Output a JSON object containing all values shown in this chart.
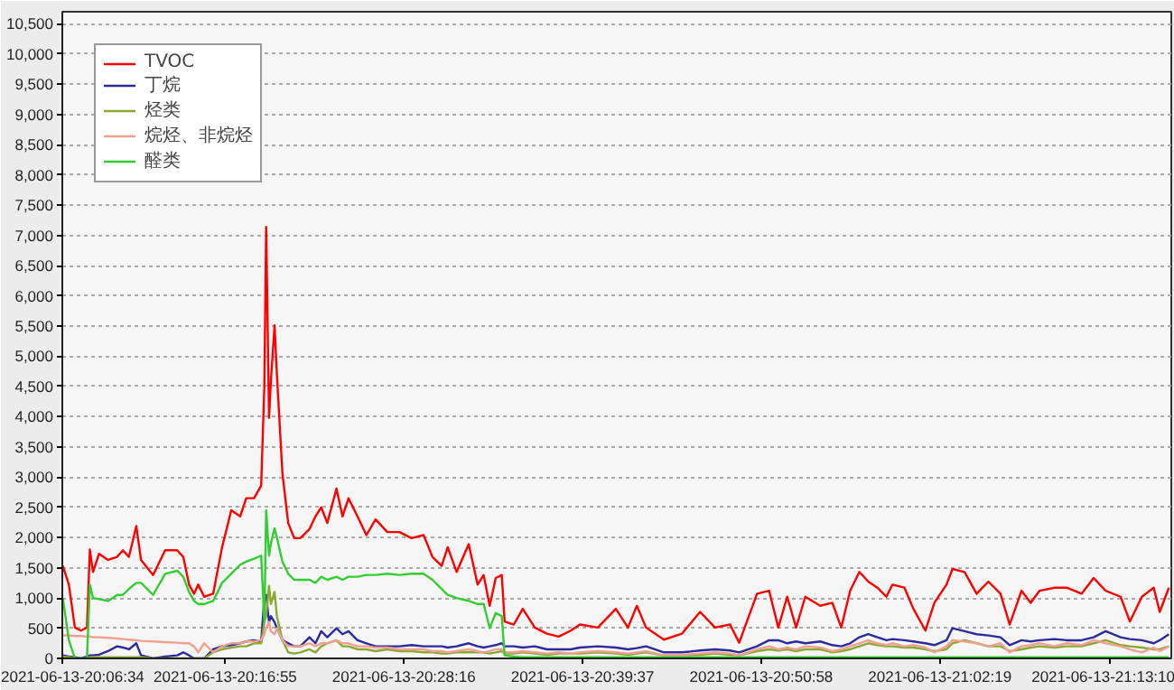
{
  "chart_data": {
    "type": "line",
    "x": [
      "2021-06-13T20:06:36",
      "2021-06-13T20:06:59",
      "2021-06-13T20:07:22",
      "2021-06-13T20:07:45",
      "2021-06-13T20:08:08",
      "2021-06-13T20:08:19",
      "2021-06-13T20:08:31",
      "2021-06-13T20:08:54",
      "2021-06-13T20:09:28",
      "2021-06-13T20:10:03",
      "2021-06-13T20:10:25",
      "2021-06-13T20:10:48",
      "2021-06-13T20:11:16",
      "2021-06-13T20:11:34",
      "2021-06-13T20:12:20",
      "2021-06-13T20:13:06",
      "2021-06-13T20:13:52",
      "2021-06-13T20:14:15",
      "2021-06-13T20:14:37",
      "2021-06-13T20:14:56",
      "2021-06-13T20:15:12",
      "2021-06-13T20:15:35",
      "2021-06-13T20:16:09",
      "2021-06-13T20:16:43",
      "2021-06-13T20:17:18",
      "2021-06-13T20:17:52",
      "2021-06-13T20:18:15",
      "2021-06-13T20:18:45",
      "2021-06-13T20:19:12",
      "2021-06-13T20:19:24",
      "2021-06-13T20:19:31",
      "2021-06-13T20:19:42",
      "2021-06-13T20:19:49",
      "2021-06-13T20:20:03",
      "2021-06-13T20:20:12",
      "2021-06-13T20:20:33",
      "2021-06-13T20:20:55",
      "2021-06-13T20:21:18",
      "2021-06-13T20:21:41",
      "2021-06-13T20:22:16",
      "2021-06-13T20:22:39",
      "2021-06-13T20:23:01",
      "2021-06-13T20:23:24",
      "2021-06-13T20:23:59",
      "2021-06-13T20:24:22",
      "2021-06-13T20:24:45",
      "2021-06-13T20:25:19",
      "2021-06-13T20:25:53",
      "2021-06-13T20:26:28",
      "2021-06-13T20:27:13",
      "2021-06-13T20:27:59",
      "2021-06-13T20:28:45",
      "2021-06-13T20:29:31",
      "2021-06-13T20:30:05",
      "2021-06-13T20:30:40",
      "2021-06-13T20:31:03",
      "2021-06-13T20:31:37",
      "2021-06-13T20:32:23",
      "2021-06-13T20:32:57",
      "2021-06-13T20:33:20",
      "2021-06-13T20:33:43",
      "2021-06-13T20:34:06",
      "2021-06-13T20:34:29",
      "2021-06-13T20:34:40",
      "2021-06-13T20:35:15",
      "2021-06-13T20:35:49",
      "2021-06-13T20:36:35",
      "2021-06-13T20:37:21",
      "2021-06-13T20:38:06",
      "2021-06-13T20:38:52",
      "2021-06-13T20:39:27",
      "2021-06-13T20:40:35",
      "2021-06-13T20:41:44",
      "2021-06-13T20:42:30",
      "2021-06-13T20:43:04",
      "2021-06-13T20:43:39",
      "2021-06-13T20:44:47",
      "2021-06-13T20:45:56",
      "2021-06-13T20:47:05",
      "2021-06-13T20:48:02",
      "2021-06-13T20:48:59",
      "2021-06-13T20:49:34",
      "2021-06-13T20:50:42",
      "2021-06-13T20:51:28",
      "2021-06-13T20:52:03",
      "2021-06-13T20:52:37",
      "2021-06-13T20:53:11",
      "2021-06-13T20:53:46",
      "2021-06-13T20:54:43",
      "2021-06-13T20:55:29",
      "2021-06-13T20:56:03",
      "2021-06-13T20:56:37",
      "2021-06-13T20:57:12",
      "2021-06-13T20:57:46",
      "2021-06-13T20:58:21",
      "2021-06-13T20:58:55",
      "2021-06-13T20:59:18",
      "2021-06-13T21:00:04",
      "2021-06-13T21:00:38",
      "2021-06-13T21:01:24",
      "2021-06-13T21:01:58",
      "2021-06-13T21:02:44",
      "2021-06-13T21:03:07",
      "2021-06-13T21:03:53",
      "2021-06-13T21:04:39",
      "2021-06-13T21:05:24",
      "2021-06-13T21:06:10",
      "2021-06-13T21:06:45",
      "2021-06-13T21:07:30",
      "2021-06-13T21:08:05",
      "2021-06-13T21:08:39",
      "2021-06-13T21:09:36",
      "2021-06-13T21:10:22",
      "2021-06-13T21:11:19",
      "2021-06-13T21:12:05",
      "2021-06-13T21:12:51",
      "2021-06-13T21:13:48",
      "2021-06-13T21:14:23",
      "2021-06-13T21:15:09",
      "2021-06-13T21:15:54",
      "2021-06-13T21:16:17",
      "2021-06-13T21:16:52"
    ],
    "series": [
      {
        "name": "TVOC",
        "color": "#ff0000",
        "values": [
          1530,
          1220,
          510,
          460,
          510,
          1800,
          1430,
          1730,
          1630,
          1680,
          1790,
          1680,
          2190,
          1630,
          1380,
          1790,
          1790,
          1680,
          1220,
          1070,
          1220,
          1020,
          1070,
          1840,
          2450,
          2350,
          2650,
          2650,
          2860,
          4490,
          7140,
          3980,
          4590,
          5510,
          4690,
          3060,
          2240,
          1990,
          1990,
          2140,
          2350,
          2500,
          2240,
          2810,
          2350,
          2650,
          2350,
          2040,
          2300,
          2090,
          2090,
          1990,
          2040,
          1680,
          1530,
          1840,
          1430,
          1890,
          1220,
          1380,
          870,
          1330,
          1380,
          610,
          560,
          820,
          510,
          410,
          360,
          460,
          560,
          510,
          820,
          510,
          870,
          510,
          310,
          410,
          770,
          510,
          560,
          260,
          1070,
          1120,
          510,
          1020,
          510,
          1020,
          870,
          920,
          510,
          1120,
          1430,
          1270,
          1170,
          1020,
          1220,
          1170,
          820,
          460,
          920,
          1220,
          1480,
          1430,
          1070,
          1270,
          1070,
          560,
          1120,
          920,
          1120,
          1170,
          1170,
          1070,
          1330,
          1120,
          1020,
          610,
          1020,
          1170,
          770,
          1170
        ]
      },
      {
        "name": "丁烷",
        "color": "#2b2b9b",
        "values": [
          50,
          30,
          20,
          0,
          30,
          50,
          50,
          60,
          120,
          200,
          180,
          150,
          250,
          50,
          0,
          30,
          50,
          100,
          50,
          0,
          0,
          0,
          150,
          200,
          220,
          250,
          280,
          300,
          280,
          1000,
          1050,
          600,
          700,
          600,
          500,
          300,
          250,
          200,
          200,
          350,
          250,
          450,
          350,
          500,
          400,
          450,
          300,
          250,
          200,
          200,
          200,
          220,
          200,
          200,
          200,
          180,
          200,
          250,
          200,
          180,
          200,
          220,
          250,
          200,
          200,
          180,
          200,
          150,
          150,
          150,
          180,
          200,
          180,
          150,
          170,
          200,
          100,
          100,
          130,
          150,
          130,
          100,
          200,
          300,
          300,
          250,
          280,
          250,
          280,
          220,
          200,
          250,
          350,
          400,
          350,
          300,
          320,
          300,
          280,
          250,
          220,
          300,
          500,
          450,
          400,
          380,
          350,
          220,
          300,
          280,
          300,
          320,
          300,
          300,
          350,
          450,
          350,
          320,
          300,
          250,
          300,
          400
        ]
      },
      {
        "name": "烃类",
        "color": "#8aa832",
        "values": [
          30,
          20,
          0,
          0,
          0,
          20,
          20,
          20,
          20,
          20,
          20,
          20,
          20,
          20,
          0,
          0,
          0,
          0,
          0,
          0,
          0,
          0,
          100,
          150,
          180,
          200,
          200,
          250,
          250,
          600,
          700,
          1200,
          900,
          1100,
          700,
          300,
          100,
          80,
          100,
          150,
          100,
          200,
          250,
          300,
          200,
          200,
          150,
          150,
          120,
          150,
          120,
          120,
          100,
          100,
          80,
          80,
          100,
          100,
          100,
          100,
          80,
          100,
          120,
          80,
          80,
          100,
          80,
          60,
          80,
          80,
          80,
          100,
          80,
          60,
          80,
          100,
          50,
          50,
          60,
          80,
          60,
          50,
          120,
          150,
          130,
          150,
          120,
          150,
          150,
          100,
          120,
          150,
          200,
          250,
          220,
          200,
          200,
          180,
          180,
          150,
          120,
          150,
          250,
          300,
          250,
          200,
          200,
          120,
          150,
          180,
          200,
          180,
          200,
          200,
          250,
          300,
          220,
          200,
          180,
          150,
          150,
          200
        ]
      },
      {
        "name": "烷烃、非烷烃",
        "color": "#f0a090",
        "values": [
          380,
          380,
          370,
          370,
          360,
          360,
          350,
          350,
          340,
          330,
          320,
          310,
          300,
          290,
          280,
          270,
          260,
          250,
          250,
          200,
          100,
          250,
          100,
          200,
          250,
          250,
          280,
          280,
          300,
          400,
          500,
          600,
          450,
          400,
          500,
          300,
          200,
          200,
          200,
          250,
          200,
          250,
          250,
          300,
          250,
          250,
          200,
          200,
          180,
          180,
          150,
          150,
          150,
          120,
          120,
          100,
          120,
          150,
          120,
          100,
          120,
          150,
          150,
          100,
          100,
          120,
          100,
          80,
          100,
          80,
          100,
          120,
          100,
          80,
          100,
          120,
          50,
          60,
          80,
          100,
          80,
          50,
          150,
          200,
          150,
          180,
          150,
          200,
          180,
          120,
          150,
          200,
          250,
          300,
          250,
          220,
          250,
          200,
          220,
          180,
          100,
          200,
          300,
          280,
          250,
          200,
          250,
          100,
          200,
          220,
          250,
          200,
          250,
          220,
          300,
          250,
          200,
          150,
          100,
          180,
          120,
          200
        ]
      },
      {
        "name": "醛类",
        "color": "#33cc33",
        "values": [
          1000,
          300,
          0,
          0,
          0,
          1220,
          1000,
          980,
          950,
          1050,
          1050,
          1150,
          1250,
          1250,
          1050,
          1400,
          1450,
          1350,
          1100,
          950,
          900,
          900,
          950,
          1250,
          1400,
          1550,
          1600,
          1650,
          1700,
          600,
          2450,
          1700,
          1900,
          2150,
          2000,
          1600,
          1400,
          1300,
          1300,
          1300,
          1250,
          1350,
          1300,
          1350,
          1300,
          1350,
          1350,
          1380,
          1380,
          1400,
          1380,
          1400,
          1400,
          1300,
          1150,
          1050,
          1000,
          950,
          900,
          900,
          500,
          750,
          700,
          50,
          30,
          20,
          20,
          20,
          20,
          20,
          20,
          20,
          20,
          20,
          20,
          20,
          20,
          20,
          20,
          20,
          20,
          20,
          20,
          20,
          20,
          20,
          20,
          20,
          20,
          20,
          20,
          20,
          20,
          20,
          20,
          20,
          20,
          20,
          20,
          20,
          20,
          20,
          20,
          20,
          20,
          20,
          20,
          20,
          20,
          20,
          20,
          20,
          20,
          20,
          20,
          20,
          20,
          20,
          20,
          20,
          20,
          20
        ]
      }
    ],
    "xlim": [
      "2021-06-13T20:06:34",
      "2021-06-13T21:17:01"
    ],
    "xticks": [
      {
        "value": "2021-06-13T20:06:34",
        "label": "2021-06-13-20:06:34"
      },
      {
        "value": "2021-06-13T20:16:55",
        "label": "2021-06-13-20:16:55"
      },
      {
        "value": "2021-06-13T20:28:16",
        "label": "2021-06-13-20:28:16"
      },
      {
        "value": "2021-06-13T20:39:37",
        "label": "2021-06-13-20:39:37"
      },
      {
        "value": "2021-06-13T20:50:58",
        "label": "2021-06-13-20:50:58"
      },
      {
        "value": "2021-06-13T21:02:19",
        "label": "2021-06-13-21:02:19"
      },
      {
        "value": "2021-06-13T21:13:10",
        "label": "2021-06-13-21:13:10"
      }
    ],
    "ylim": [
      0,
      10700
    ],
    "yticks": [
      0,
      500,
      {
        "value": 1000,
        "label": "1,000"
      },
      {
        "value": 1500,
        "label": "1,500"
      },
      {
        "value": 2000,
        "label": "2,000"
      },
      {
        "value": 2500,
        "label": "2,500"
      },
      {
        "value": 3000,
        "label": "3,000"
      },
      {
        "value": 3500,
        "label": "3,500"
      },
      {
        "value": 4000,
        "label": "4,000"
      },
      {
        "value": 4500,
        "label": "4,500"
      },
      {
        "value": 5000,
        "label": "5,000"
      },
      {
        "value": 5500,
        "label": "5,500"
      },
      {
        "value": 6000,
        "label": "6,000"
      },
      {
        "value": 6500,
        "label": "6,500"
      },
      {
        "value": 7000,
        "label": "7,000"
      },
      {
        "value": 7500,
        "label": "7,500"
      },
      {
        "value": 8000,
        "label": "8,000"
      },
      {
        "value": 8500,
        "label": "8,500"
      },
      {
        "value": 9000,
        "label": "9,000"
      },
      {
        "value": 9500,
        "label": "9,500"
      },
      {
        "value": 10000,
        "label": "10,000"
      },
      {
        "value": 10500,
        "label": "10,500"
      }
    ],
    "grid": "y",
    "legend": "top left",
    "marker": "none",
    "line_style": "solid"
  }
}
